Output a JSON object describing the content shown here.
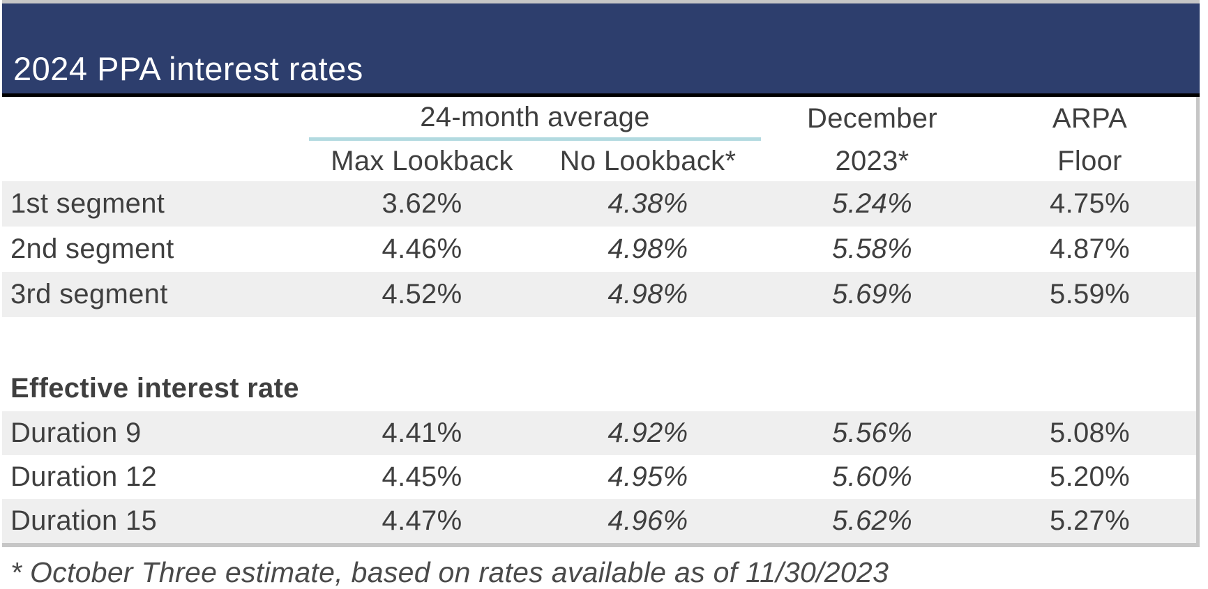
{
  "title": "2024 PPA interest rates",
  "columns": {
    "group_24mo": "24-month average",
    "max_lookback": "Max Lookback",
    "no_lookback": "No Lookback*",
    "december_line1": "December",
    "december_line2": "2023*",
    "arpa_line1": "ARPA",
    "arpa_line2": "Floor"
  },
  "segments": [
    {
      "label": "1st segment",
      "max_lookback": "3.62%",
      "no_lookback": "4.38%",
      "december": "5.24%",
      "arpa_floor": "4.75%"
    },
    {
      "label": "2nd segment",
      "max_lookback": "4.46%",
      "no_lookback": "4.98%",
      "december": "5.58%",
      "arpa_floor": "4.87%"
    },
    {
      "label": "3rd segment",
      "max_lookback": "4.52%",
      "no_lookback": "4.98%",
      "december": "5.69%",
      "arpa_floor": "5.59%"
    }
  ],
  "section_label": "Effective interest rate",
  "durations": [
    {
      "label": "Duration 9",
      "max_lookback": "4.41%",
      "no_lookback": "4.92%",
      "december": "5.56%",
      "arpa_floor": "5.08%"
    },
    {
      "label": "Duration 12",
      "max_lookback": "4.45%",
      "no_lookback": "4.95%",
      "december": "5.60%",
      "arpa_floor": "5.20%"
    },
    {
      "label": "Duration 15",
      "max_lookback": "4.47%",
      "no_lookback": "4.96%",
      "december": "5.62%",
      "arpa_floor": "5.27%"
    }
  ],
  "footnote": "* October Three estimate, based on rates available as of 11/30/2023",
  "colors": {
    "navy": "#2d3e6d",
    "teal_underline": "#b2dae0",
    "row_stripe": "#efefef",
    "border_gray": "#c6c6c6",
    "title_text": "#ffffff",
    "body_text": "#3f3f3f",
    "footnote_text": "#4a4a4a"
  }
}
